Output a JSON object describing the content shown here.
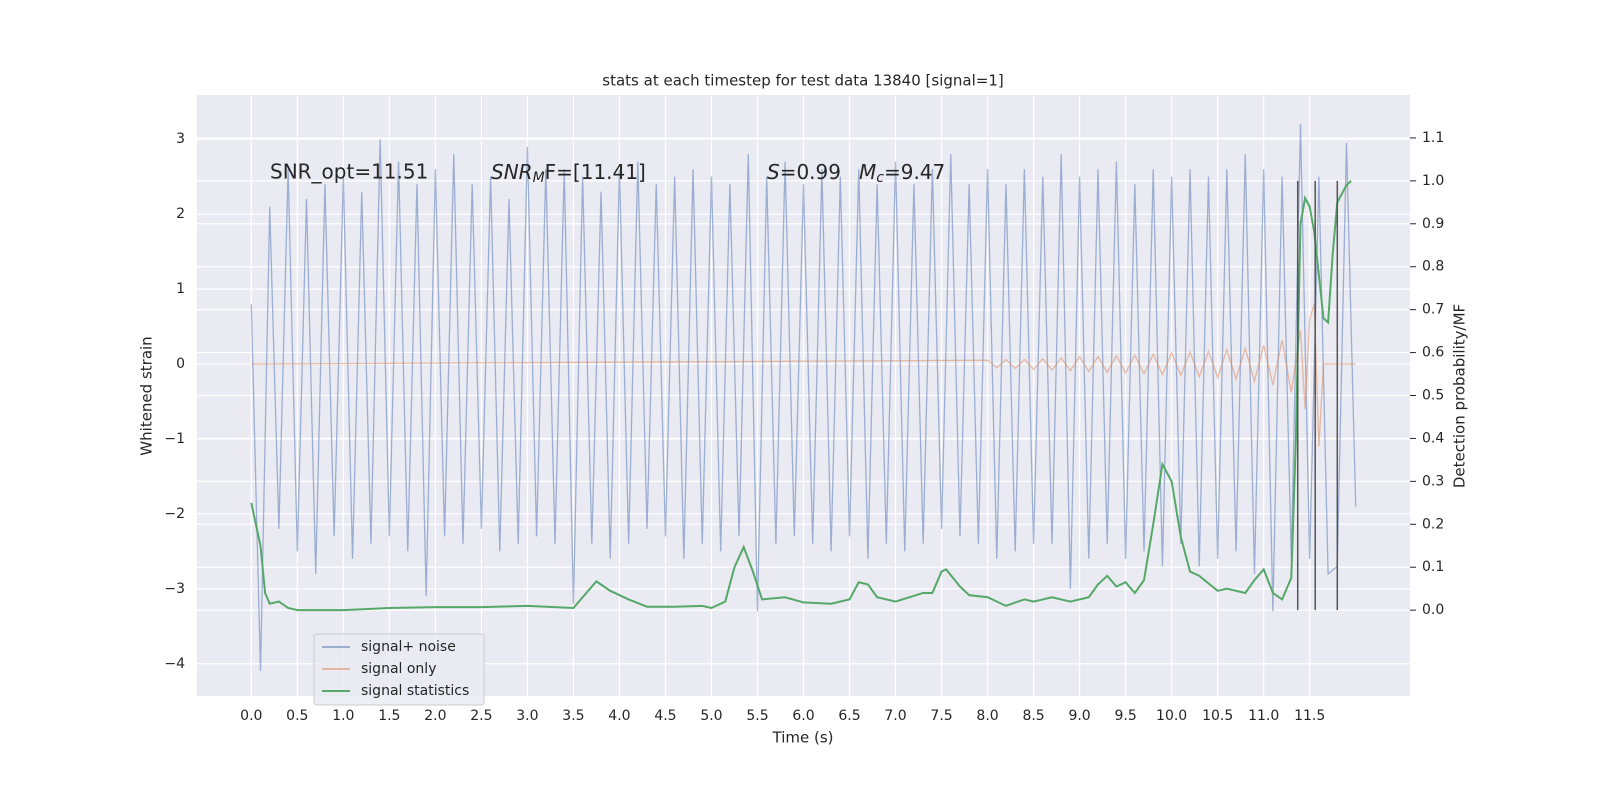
{
  "chart_data": {
    "type": "line",
    "title": "stats at each timestep for test data 13840 [signal=1]",
    "xlabel": "Time (s)",
    "ylabel": "Whitened strain",
    "y2label": "Detection probability/MF",
    "annotations": [
      "SNR_opt=11.51",
      [
        "SNR",
        "M",
        "F=[11.41]"
      ],
      [
        "S",
        "=0.99"
      ],
      [
        "M",
        "c",
        "=9.47"
      ]
    ],
    "xlim": [
      -0.59,
      12.59
    ],
    "ylim": [
      -4.43,
      3.59
    ],
    "y2lim": [
      -0.2,
      1.2
    ],
    "xticks": [
      {
        "value": 0,
        "label": "0.0"
      },
      0.5,
      {
        "value": 1,
        "label": "1.0"
      },
      1.5,
      {
        "value": 2,
        "label": "2.0"
      },
      2.5,
      {
        "value": 3,
        "label": "3.0"
      },
      3.5,
      {
        "value": 4,
        "label": "4.0"
      },
      4.5,
      {
        "value": 5,
        "label": "5.0"
      },
      5.5,
      {
        "value": 6,
        "label": "6.0"
      },
      6.5,
      {
        "value": 7,
        "label": "7.0"
      },
      7.5,
      {
        "value": 8,
        "label": "8.0"
      },
      8.5,
      {
        "value": 9,
        "label": "9.0"
      },
      9.5,
      {
        "value": 10,
        "label": "10.0"
      },
      10.5,
      {
        "value": 11,
        "label": "11.0"
      },
      11.5
    ],
    "yticks": [
      {
        "value": -4,
        "label": "−4"
      },
      {
        "value": -3,
        "label": "−3"
      },
      {
        "value": -2,
        "label": "−2"
      },
      {
        "value": -1,
        "label": "−1"
      },
      0,
      1,
      2,
      3
    ],
    "y2ticks": [
      {
        "value": 0,
        "label": "0.0"
      },
      0.1,
      0.2,
      0.3,
      0.4,
      0.5,
      0.6,
      0.7,
      0.8,
      0.9,
      {
        "value": 1,
        "label": "1.0"
      },
      1.1
    ],
    "grid": true,
    "legend": "lower left",
    "series": [
      {
        "name": "signal+ noise",
        "color": "#4c72b0",
        "opacity": 0.5,
        "x": [
          0.0,
          0.1,
          0.2,
          0.3,
          0.4,
          0.5,
          0.6,
          0.7,
          0.8,
          0.9,
          1.0,
          1.1,
          1.2,
          1.3,
          1.4,
          1.5,
          1.6,
          1.7,
          1.8,
          1.9,
          2.0,
          2.1,
          2.2,
          2.3,
          2.4,
          2.5,
          2.6,
          2.7,
          2.8,
          2.9,
          3.0,
          3.1,
          3.2,
          3.3,
          3.4,
          3.5,
          3.6,
          3.7,
          3.8,
          3.9,
          4.0,
          4.1,
          4.2,
          4.3,
          4.4,
          4.5,
          4.6,
          4.7,
          4.8,
          4.9,
          5.0,
          5.1,
          5.2,
          5.3,
          5.4,
          5.5,
          5.6,
          5.7,
          5.8,
          5.9,
          6.0,
          6.1,
          6.2,
          6.3,
          6.4,
          6.5,
          6.6,
          6.7,
          6.8,
          6.9,
          7.0,
          7.1,
          7.2,
          7.3,
          7.4,
          7.5,
          7.6,
          7.7,
          7.8,
          7.9,
          8.0,
          8.1,
          8.2,
          8.3,
          8.4,
          8.5,
          8.6,
          8.7,
          8.8,
          8.9,
          9.0,
          9.1,
          9.2,
          9.3,
          9.4,
          9.5,
          9.6,
          9.7,
          9.8,
          9.9,
          10.0,
          10.1,
          10.2,
          10.3,
          10.4,
          10.5,
          10.6,
          10.7,
          10.8,
          10.9,
          11.0,
          11.1,
          11.2,
          11.3,
          11.4,
          11.5,
          11.6,
          11.7,
          11.8,
          11.9,
          12.0
        ],
        "values": [
          0.8,
          -4.1,
          2.1,
          -2.2,
          2.6,
          -2.5,
          2.2,
          -2.8,
          2.4,
          -2.3,
          2.5,
          -2.6,
          2.3,
          -2.4,
          3.0,
          -2.3,
          2.7,
          -2.5,
          2.4,
          -3.1,
          2.6,
          -2.3,
          2.8,
          -2.4,
          2.4,
          -2.2,
          2.5,
          -2.5,
          2.2,
          -2.4,
          2.9,
          -2.3,
          2.6,
          -2.4,
          2.6,
          -3.2,
          2.5,
          -2.4,
          2.3,
          -2.6,
          2.6,
          -2.4,
          2.7,
          -2.2,
          2.4,
          -2.3,
          2.5,
          -2.6,
          2.6,
          -2.4,
          2.5,
          -2.5,
          2.4,
          -2.3,
          2.8,
          -3.3,
          2.5,
          -2.4,
          2.7,
          -2.3,
          2.4,
          -2.4,
          2.6,
          -2.5,
          2.5,
          -2.3,
          2.6,
          -2.6,
          2.4,
          -2.4,
          2.7,
          -2.5,
          2.4,
          -2.4,
          2.6,
          -2.2,
          2.8,
          -2.3,
          2.4,
          -2.4,
          2.6,
          -2.6,
          2.4,
          -2.5,
          2.6,
          -2.4,
          2.5,
          -2.4,
          2.8,
          -3.0,
          2.5,
          -2.6,
          2.6,
          -2.4,
          2.7,
          -2.6,
          2.4,
          -2.5,
          2.6,
          -2.7,
          2.5,
          -2.4,
          2.6,
          -2.7,
          2.5,
          -2.6,
          2.6,
          -2.5,
          2.8,
          -2.8,
          2.6,
          -3.3,
          2.5,
          -2.6,
          3.2,
          -2.6,
          2.5,
          -2.8,
          -2.7,
          2.95,
          -1.9
        ]
      },
      {
        "name": "signal only",
        "color": "#dd8452",
        "opacity": 0.5,
        "x": [
          0.0,
          8.0,
          8.1,
          8.2,
          8.3,
          8.4,
          8.5,
          8.6,
          8.7,
          8.8,
          8.9,
          9.0,
          9.1,
          9.2,
          9.3,
          9.4,
          9.5,
          9.6,
          9.7,
          9.8,
          9.9,
          10.0,
          10.1,
          10.2,
          10.3,
          10.4,
          10.5,
          10.6,
          10.7,
          10.8,
          10.9,
          11.0,
          11.1,
          11.2,
          11.3,
          11.4,
          11.45,
          11.5,
          11.55,
          11.6,
          11.65,
          12.0
        ],
        "values": [
          0,
          0.05,
          -0.05,
          0.06,
          -0.06,
          0.06,
          -0.07,
          0.07,
          -0.08,
          0.08,
          -0.09,
          0.1,
          -0.1,
          0.1,
          -0.11,
          0.11,
          -0.12,
          0.12,
          -0.13,
          0.13,
          -0.14,
          0.15,
          -0.15,
          0.16,
          -0.17,
          0.17,
          -0.18,
          0.19,
          -0.2,
          0.21,
          -0.23,
          0.25,
          -0.28,
          0.32,
          -0.38,
          0.45,
          -0.6,
          0.6,
          0.8,
          -1.1,
          0,
          0
        ]
      },
      {
        "name": "signal statistics",
        "color": "#55a868",
        "axis": "y2",
        "x": [
          0.0,
          0.1,
          0.15,
          0.2,
          0.3,
          0.4,
          0.5,
          1.0,
          1.5,
          2.0,
          2.5,
          3.0,
          3.5,
          3.6,
          3.75,
          3.9,
          4.1,
          4.3,
          4.6,
          4.9,
          5.0,
          5.15,
          5.25,
          5.35,
          5.45,
          5.55,
          5.8,
          6.0,
          6.3,
          6.5,
          6.6,
          6.7,
          6.8,
          7.0,
          7.3,
          7.4,
          7.5,
          7.55,
          7.7,
          7.8,
          8.0,
          8.2,
          8.4,
          8.5,
          8.7,
          8.9,
          9.1,
          9.2,
          9.3,
          9.4,
          9.5,
          9.6,
          9.7,
          9.8,
          9.9,
          10.0,
          10.1,
          10.2,
          10.3,
          10.5,
          10.6,
          10.8,
          10.9,
          11.0,
          11.1,
          11.2,
          11.3,
          11.35,
          11.4,
          11.45,
          11.5,
          11.55,
          11.6,
          11.65,
          11.7,
          11.75,
          11.8,
          11.9,
          11.95
        ],
        "values": [
          0.25,
          0.15,
          0.04,
          0.015,
          0.02,
          0.005,
          0.0,
          0.0,
          0.005,
          0.007,
          0.007,
          0.01,
          0.005,
          0.03,
          0.067,
          0.045,
          0.025,
          0.008,
          0.008,
          0.01,
          0.005,
          0.02,
          0.1,
          0.147,
          0.09,
          0.025,
          0.03,
          0.018,
          0.015,
          0.025,
          0.065,
          0.06,
          0.03,
          0.02,
          0.04,
          0.04,
          0.09,
          0.095,
          0.055,
          0.035,
          0.03,
          0.01,
          0.025,
          0.02,
          0.03,
          0.02,
          0.03,
          0.06,
          0.08,
          0.055,
          0.065,
          0.04,
          0.07,
          0.2,
          0.34,
          0.3,
          0.17,
          0.09,
          0.08,
          0.045,
          0.05,
          0.04,
          0.07,
          0.095,
          0.04,
          0.025,
          0.075,
          0.4,
          0.9,
          0.96,
          0.94,
          0.88,
          0.78,
          0.68,
          0.67,
          0.83,
          0.95,
          0.99,
          1.0
        ]
      }
    ],
    "markers": {
      "x": [
        11.37,
        11.56,
        11.8
      ],
      "span": [
        0,
        1
      ],
      "color": "#555555"
    }
  }
}
